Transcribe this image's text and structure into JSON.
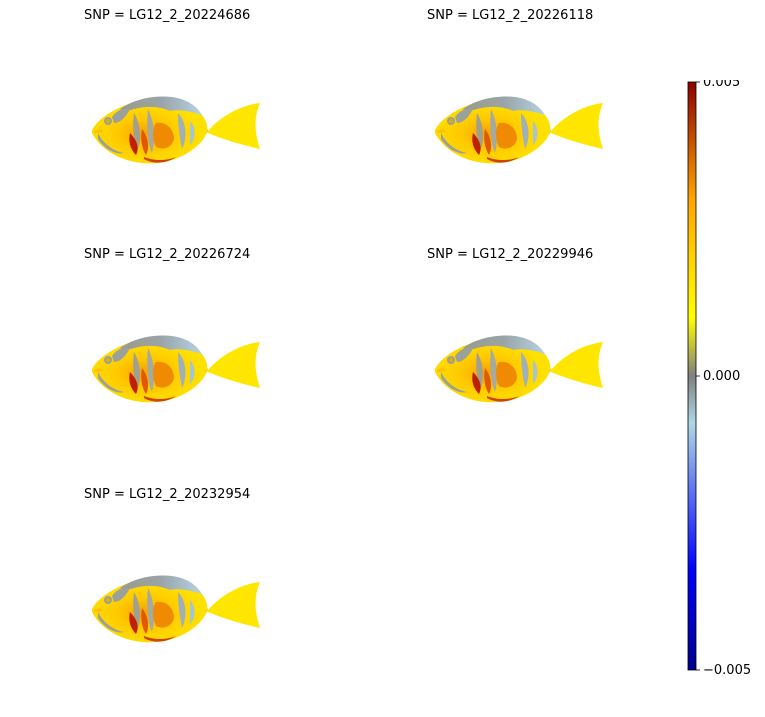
{
  "panels": [
    {
      "title": "SNP = LG12_2_20224686"
    },
    {
      "title": "SNP = LG12_2_20226118"
    },
    {
      "title": "SNP = LG12_2_20226724"
    },
    {
      "title": "SNP = LG12_2_20229946"
    },
    {
      "title": "SNP = LG12_2_20232954"
    }
  ],
  "chart_data": {
    "type": "heatmap",
    "panels": [
      "SNP = LG12_2_20224686",
      "SNP = LG12_2_20226118",
      "SNP = LG12_2_20226724",
      "SNP = LG12_2_20229946",
      "SNP = LG12_2_20232954"
    ],
    "colorbar": {
      "range": [
        -0.005,
        0.005
      ],
      "ticks": [
        "0.005",
        "0.000",
        "−0.005"
      ],
      "colors": [
        "#00008b",
        "#0000ff",
        "#add8e6",
        "#808080",
        "#ffff00",
        "#ffa500",
        "#8b0000"
      ]
    }
  }
}
